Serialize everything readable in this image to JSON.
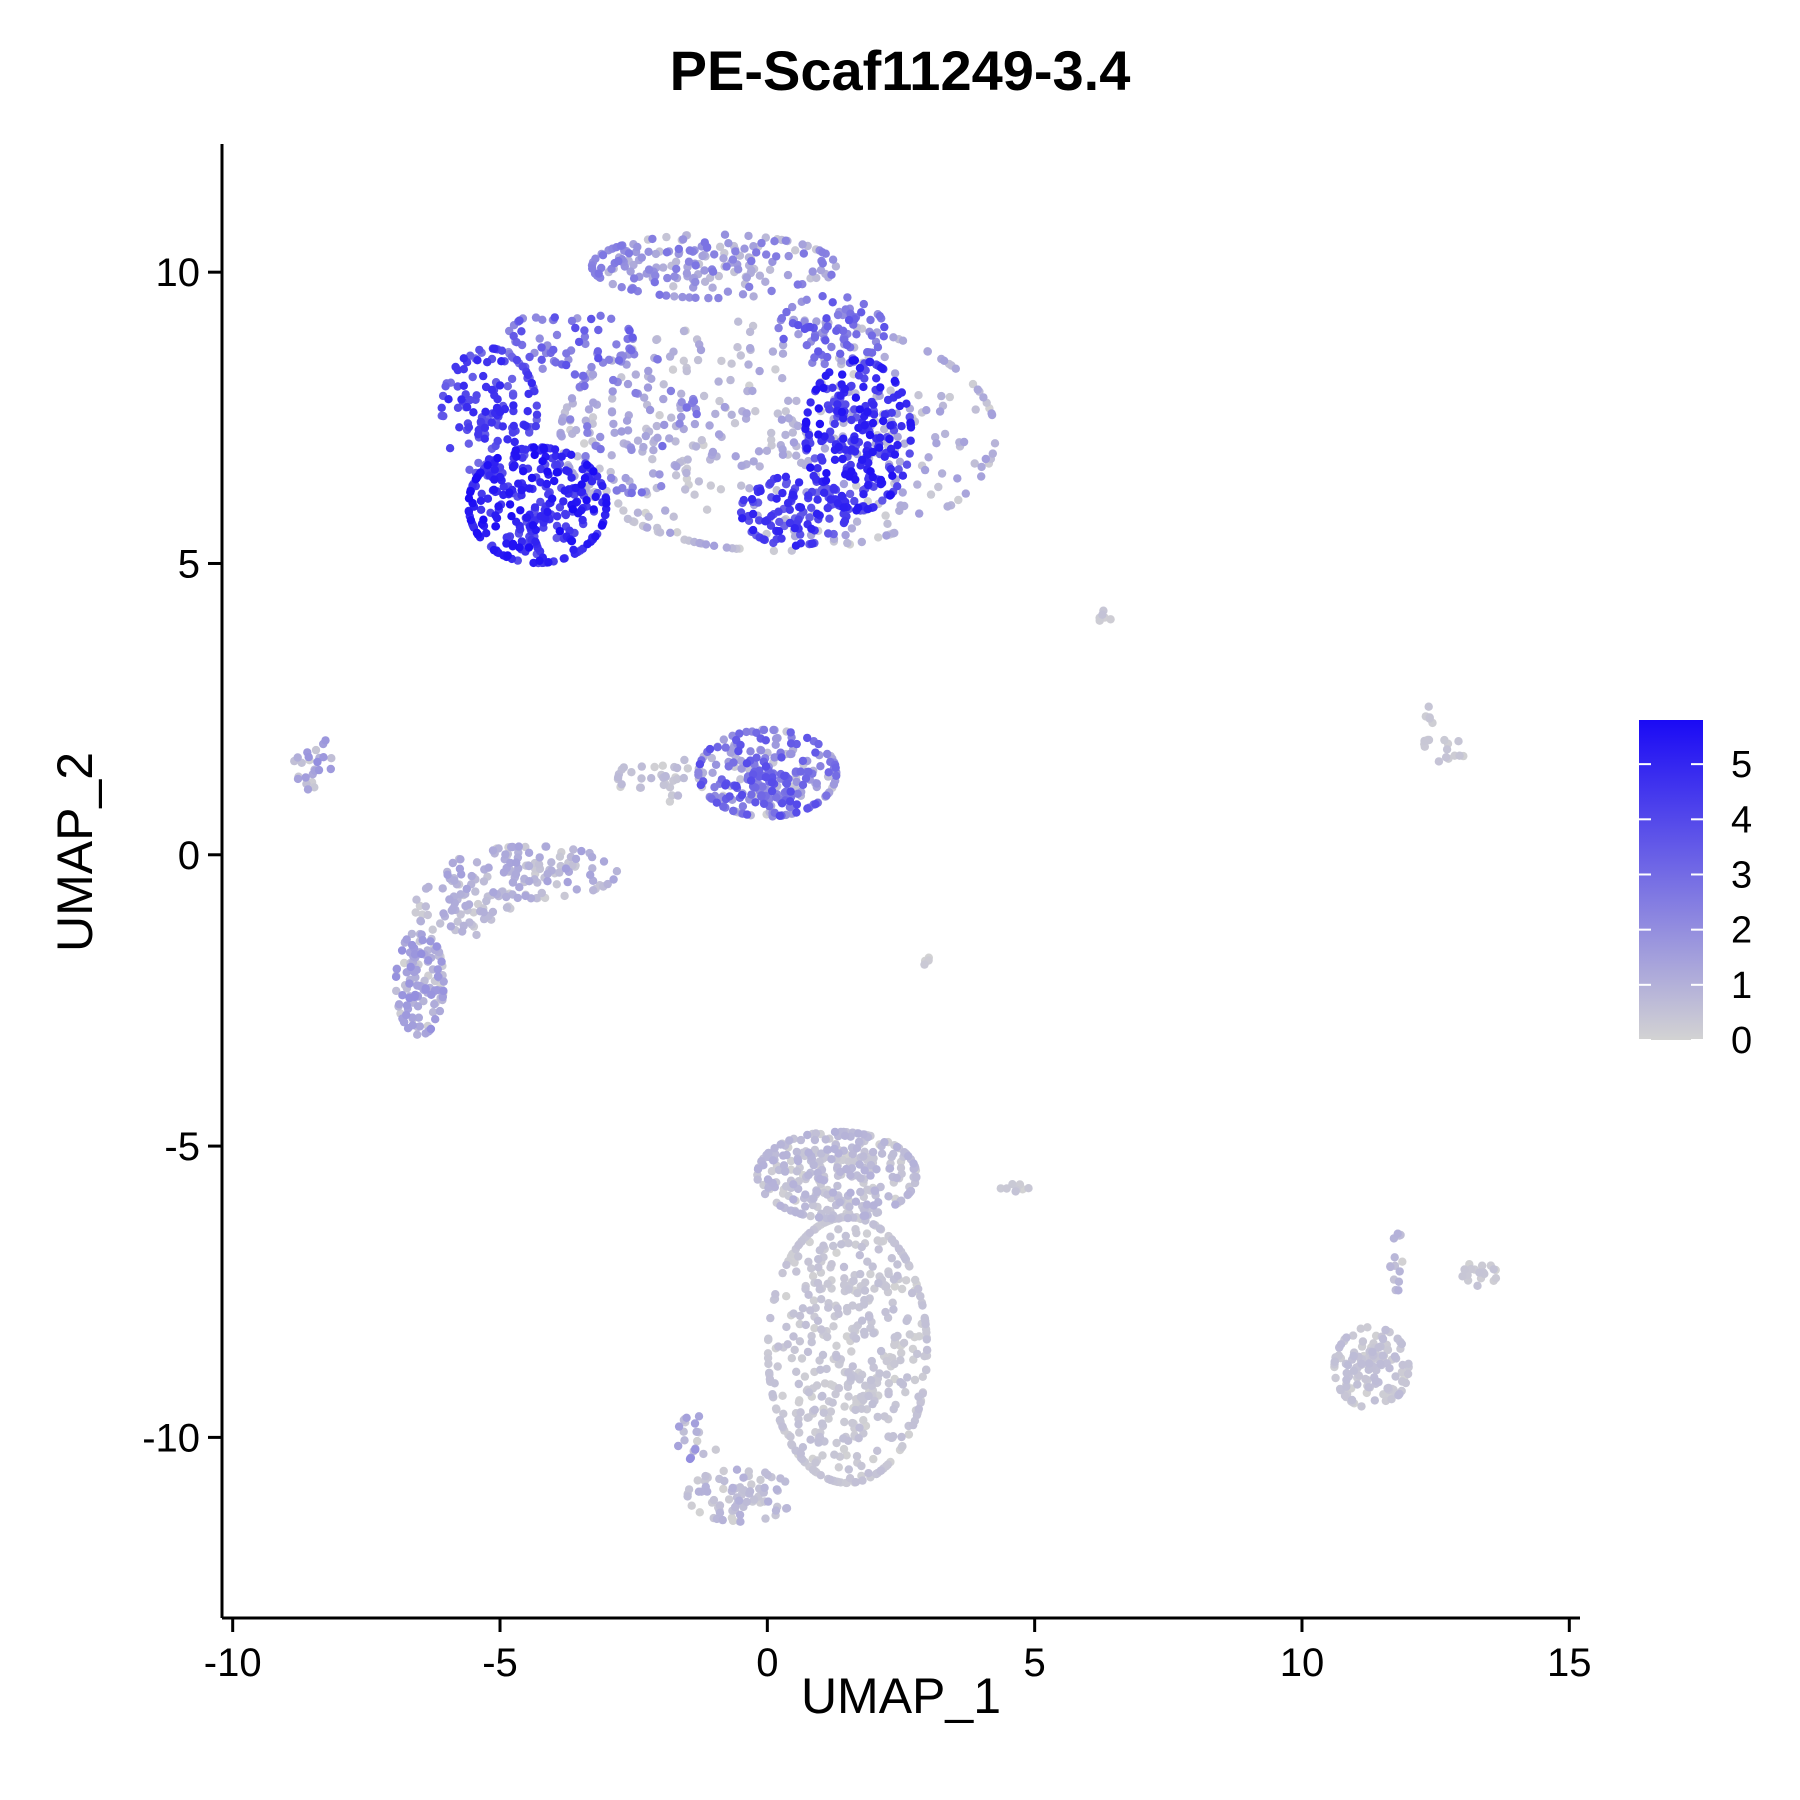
{
  "chart_data": {
    "type": "scatter",
    "title": "PE-Scaf11249-3.4",
    "xlabel": "UMAP_1",
    "ylabel": "UMAP_2",
    "xlim": [
      -10.2,
      15.2
    ],
    "ylim": [
      -13.1,
      12.2
    ],
    "x_ticks": [
      -10,
      -5,
      0,
      5,
      10,
      15
    ],
    "y_ticks": [
      -10,
      -5,
      0,
      5,
      10
    ],
    "x_tick_labels": [
      "-10",
      "-5",
      "0",
      "5",
      "10",
      "15"
    ],
    "y_tick_labels": [
      "-10",
      "-5",
      "0",
      "5",
      "10"
    ],
    "grid": false,
    "color_scale": {
      "low_color": "#d3d3d3",
      "high_color": "#1a0af5",
      "min": 0,
      "max": 5.8,
      "ticks": [
        0,
        1,
        2,
        3,
        4,
        5
      ],
      "tick_labels": [
        "0",
        "1",
        "2",
        "3",
        "4",
        "5"
      ],
      "legend_position": "right"
    },
    "clusters": [
      {
        "cx": 0.2,
        "cy": 7.2,
        "rx": 4.1,
        "ry": 2.0,
        "n": 380,
        "expr_low": 0,
        "expr_high": 1.5
      },
      {
        "cx": -4.3,
        "cy": 6.0,
        "rx": 1.3,
        "ry": 1.0,
        "n": 300,
        "expr_low": 3.5,
        "expr_high": 5.8
      },
      {
        "cx": -5.2,
        "cy": 7.6,
        "rx": 0.9,
        "ry": 1.1,
        "n": 130,
        "expr_low": 2.8,
        "expr_high": 5.0
      },
      {
        "cx": -3.7,
        "cy": 8.8,
        "rx": 1.2,
        "ry": 0.6,
        "n": 70,
        "expr_low": 1.5,
        "expr_high": 3.8
      },
      {
        "cx": 1.7,
        "cy": 7.2,
        "rx": 1.0,
        "ry": 1.3,
        "n": 250,
        "expr_low": 3.2,
        "expr_high": 5.6
      },
      {
        "cx": 0.5,
        "cy": 5.9,
        "rx": 1.0,
        "ry": 0.6,
        "n": 110,
        "expr_low": 3.0,
        "expr_high": 5.2
      },
      {
        "cx": -1.0,
        "cy": 10.1,
        "rx": 2.3,
        "ry": 0.55,
        "n": 190,
        "expr_low": 0,
        "expr_high": 2.8
      },
      {
        "cx": 1.2,
        "cy": 9.0,
        "rx": 1.0,
        "ry": 0.6,
        "n": 80,
        "expr_low": 1.5,
        "expr_high": 3.8
      },
      {
        "cx": -2.5,
        "cy": 7.4,
        "rx": 1.2,
        "ry": 1.2,
        "n": 90,
        "expr_low": 0,
        "expr_high": 3.0
      },
      {
        "cx": 0.0,
        "cy": 1.4,
        "rx": 1.3,
        "ry": 0.75,
        "n": 260,
        "expr_low": 0,
        "expr_high": 4.0
      },
      {
        "cx": -2.0,
        "cy": 1.3,
        "rx": 0.8,
        "ry": 0.4,
        "n": 35,
        "expr_low": 0,
        "expr_high": 0.8
      },
      {
        "cx": -4.4,
        "cy": -0.3,
        "rx": 1.6,
        "ry": 0.45,
        "n": 120,
        "expr_low": 0,
        "expr_high": 1.5
      },
      {
        "cx": -5.7,
        "cy": -0.9,
        "rx": 0.9,
        "ry": 0.5,
        "n": 60,
        "expr_low": 0,
        "expr_high": 1.2
      },
      {
        "cx": -6.5,
        "cy": -2.2,
        "rx": 0.45,
        "ry": 0.9,
        "n": 130,
        "expr_low": 0,
        "expr_high": 2.0
      },
      {
        "cx": -8.5,
        "cy": 1.6,
        "rx": 0.35,
        "ry": 0.5,
        "n": 25,
        "expr_low": 0,
        "expr_high": 2.0
      },
      {
        "cx": 1.3,
        "cy": -5.5,
        "rx": 1.5,
        "ry": 0.75,
        "n": 300,
        "expr_low": 0,
        "expr_high": 1.0
      },
      {
        "cx": 1.5,
        "cy": -8.5,
        "rx": 1.5,
        "ry": 2.3,
        "n": 520,
        "expr_low": 0,
        "expr_high": 0.6
      },
      {
        "cx": -0.5,
        "cy": -11.0,
        "rx": 1.0,
        "ry": 0.45,
        "n": 80,
        "expr_low": 0,
        "expr_high": 1.0
      },
      {
        "cx": -1.3,
        "cy": -10.0,
        "rx": 0.4,
        "ry": 0.4,
        "n": 20,
        "expr_low": 0,
        "expr_high": 2.0
      },
      {
        "cx": 11.3,
        "cy": -8.8,
        "rx": 0.7,
        "ry": 0.7,
        "n": 140,
        "expr_low": 0,
        "expr_high": 0.7
      },
      {
        "cx": 11.8,
        "cy": -7.0,
        "rx": 0.15,
        "ry": 0.5,
        "n": 15,
        "expr_low": 0,
        "expr_high": 1.0
      },
      {
        "cx": 13.3,
        "cy": -7.2,
        "rx": 0.35,
        "ry": 0.2,
        "n": 18,
        "expr_low": 0,
        "expr_high": 0.5
      },
      {
        "cx": 12.6,
        "cy": 1.8,
        "rx": 0.5,
        "ry": 0.2,
        "n": 15,
        "expr_low": 0,
        "expr_high": 0.5
      },
      {
        "cx": 12.4,
        "cy": 2.4,
        "rx": 0.1,
        "ry": 0.15,
        "n": 5,
        "expr_low": 0,
        "expr_high": 0.5
      },
      {
        "cx": 6.3,
        "cy": 4.1,
        "rx": 0.15,
        "ry": 0.1,
        "n": 6,
        "expr_low": 0,
        "expr_high": 0.5
      },
      {
        "cx": 3.0,
        "cy": -1.8,
        "rx": 0.12,
        "ry": 0.1,
        "n": 4,
        "expr_low": 0,
        "expr_high": 0.5
      },
      {
        "cx": 4.6,
        "cy": -5.7,
        "rx": 0.3,
        "ry": 0.08,
        "n": 8,
        "expr_low": 0,
        "expr_high": 0.5
      }
    ]
  }
}
